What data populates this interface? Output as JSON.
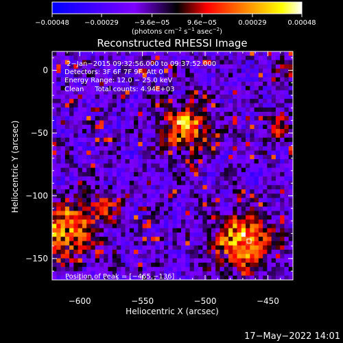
{
  "chart_data": {
    "type": "heatmap",
    "title": "Reconstructed RHESSI Image",
    "xlabel": "Heliocentric X (arcsec)",
    "ylabel": "Heliocentric Y (arcsec)",
    "xlim": [
      -622,
      -430
    ],
    "ylim": [
      -167,
      15
    ],
    "xticks": [
      -600,
      -550,
      -500,
      -450
    ],
    "xtick_labels": [
      "−600",
      "−550",
      "−500",
      "−450"
    ],
    "yticks": [
      -150,
      -100,
      -50,
      0
    ],
    "ytick_labels": [
      "−150",
      "−100",
      "−50",
      "0"
    ],
    "colorbar": {
      "range": [
        -0.00048,
        0.00048
      ],
      "ticks": [
        -0.00048,
        -0.00029,
        -9.6e-05,
        9.6e-05,
        0.00029,
        0.00048
      ],
      "tick_labels": [
        "−0.00048",
        "−0.00029",
        "−9.6e−05",
        "9.6e−05",
        "0.00029",
        "0.00048"
      ],
      "unit_main": "(photons cm",
      "unit_exp1": "−2",
      "unit_mid": " s",
      "unit_exp2": "−1",
      "unit_after": " asec",
      "unit_exp3": "−2",
      "unit_close": ")",
      "colors": [
        "#0000ff",
        "#7f00ff",
        "#000000",
        "#ff0000",
        "#ff8c00",
        "#ffff00",
        "#ffffff"
      ]
    },
    "annotations": [
      " 2−Jan−2015 09:32:56.000 to 09:37:52.000",
      "Detectors: 3F 6F 7F 9F, Att 0",
      "Energy Range: 12.0 − 25.0 keV",
      "Clean     Total counts: 4.94E+03"
    ],
    "peak_label": "Position of Peak = [−465,−136]",
    "peak_position": [
      -465,
      -136
    ],
    "sources": [
      {
        "x": -515,
        "y": -45,
        "sigma": 14,
        "amp": 1.0
      },
      {
        "x": -470,
        "y": -136,
        "sigma": 16,
        "amp": 1.1
      },
      {
        "x": -612,
        "y": -128,
        "sigma": 16,
        "amp": 1.0
      },
      {
        "x": -580,
        "y": -110,
        "sigma": 9,
        "amp": 0.55
      },
      {
        "x": -440,
        "y": -45,
        "sigma": 8,
        "amp": 0.45
      },
      {
        "x": -433,
        "y": 0,
        "sigma": 6,
        "amp": 0.45
      }
    ]
  },
  "footer": {
    "date": "17−May−2022 14:01"
  }
}
